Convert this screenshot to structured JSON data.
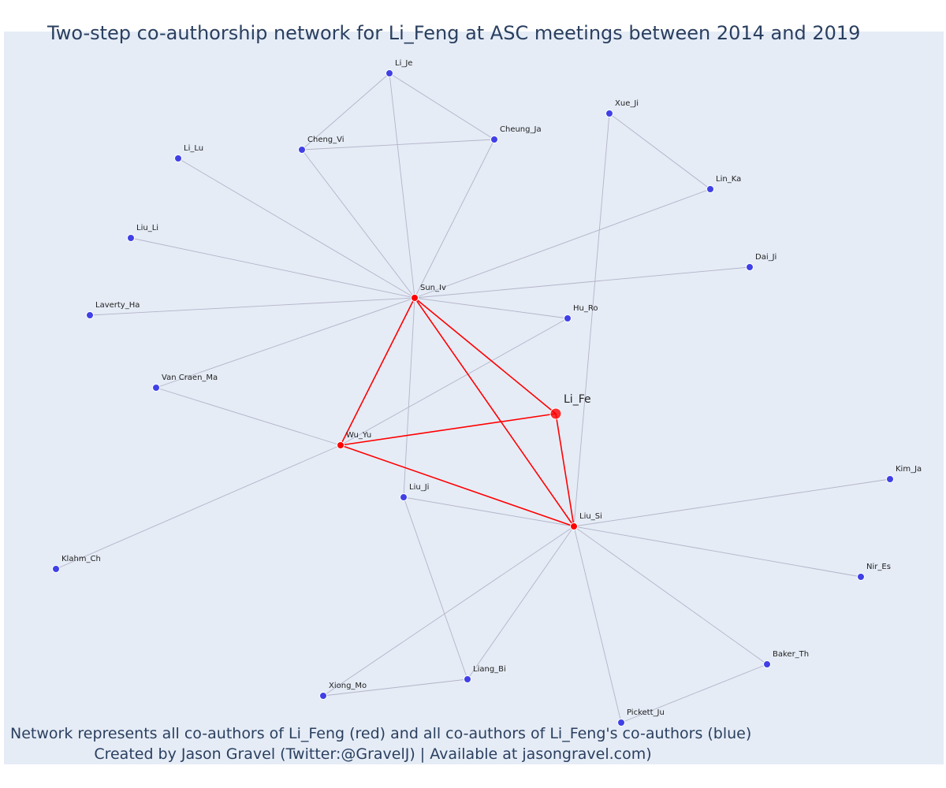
{
  "title": "Two-step co-authorship network for Li_Feng at ASC meetings between 2014 and 2019",
  "caption": {
    "line1": "Network represents all co-authors of Li_Feng (red) and all co-authors of Li_Feng's co-authors (blue)",
    "line2": "Created by Jason Gravel (Twitter:@GravelJ) | Available at jasongravel.com)"
  },
  "colors": {
    "background": "#e5ecf6",
    "first_degree": "#ff0000",
    "second_degree": "#4040e6",
    "edge_secondary": "#b4b4c8",
    "edge_primary": "#ff0000"
  },
  "nodes": [
    {
      "id": "Li_Fe",
      "group": "center"
    },
    {
      "id": "Sun_Iv",
      "group": "first"
    },
    {
      "id": "Wu_Yu",
      "group": "first"
    },
    {
      "id": "Liu_Si",
      "group": "first"
    },
    {
      "id": "Li_Je",
      "group": "second"
    },
    {
      "id": "Cheng_Vi",
      "group": "second"
    },
    {
      "id": "Cheung_Ja",
      "group": "second"
    },
    {
      "id": "Xue_Ji",
      "group": "second"
    },
    {
      "id": "Lin_Ka",
      "group": "second"
    },
    {
      "id": "Li_Lu",
      "group": "second"
    },
    {
      "id": "Liu_Li",
      "group": "second"
    },
    {
      "id": "Dai_Ji",
      "group": "second"
    },
    {
      "id": "Laverty_Ha",
      "group": "second"
    },
    {
      "id": "Hu_Ro",
      "group": "second"
    },
    {
      "id": "Van Craen_Ma",
      "group": "second"
    },
    {
      "id": "Liu_Ji",
      "group": "second"
    },
    {
      "id": "Kim_Ja",
      "group": "second"
    },
    {
      "id": "Klahm_Ch",
      "group": "second"
    },
    {
      "id": "Nir_Es",
      "group": "second"
    },
    {
      "id": "Baker_Th",
      "group": "second"
    },
    {
      "id": "Liang_Bi",
      "group": "second"
    },
    {
      "id": "Xiong_Mo",
      "group": "second"
    },
    {
      "id": "Pickett_Ju",
      "group": "second"
    }
  ],
  "edges": [
    {
      "source": "Li_Fe",
      "target": "Sun_Iv",
      "type": "primary"
    },
    {
      "source": "Li_Fe",
      "target": "Wu_Yu",
      "type": "primary"
    },
    {
      "source": "Li_Fe",
      "target": "Liu_Si",
      "type": "primary"
    },
    {
      "source": "Sun_Iv",
      "target": "Wu_Yu",
      "type": "primary"
    },
    {
      "source": "Sun_Iv",
      "target": "Liu_Si",
      "type": "primary"
    },
    {
      "source": "Wu_Yu",
      "target": "Liu_Si",
      "type": "primary"
    },
    {
      "source": "Sun_Iv",
      "target": "Li_Je",
      "type": "secondary"
    },
    {
      "source": "Sun_Iv",
      "target": "Cheng_Vi",
      "type": "secondary"
    },
    {
      "source": "Sun_Iv",
      "target": "Cheung_Ja",
      "type": "secondary"
    },
    {
      "source": "Sun_Iv",
      "target": "Li_Lu",
      "type": "secondary"
    },
    {
      "source": "Sun_Iv",
      "target": "Liu_Li",
      "type": "secondary"
    },
    {
      "source": "Sun_Iv",
      "target": "Laverty_Ha",
      "type": "secondary"
    },
    {
      "source": "Sun_Iv",
      "target": "Lin_Ka",
      "type": "secondary"
    },
    {
      "source": "Sun_Iv",
      "target": "Dai_Ji",
      "type": "secondary"
    },
    {
      "source": "Sun_Iv",
      "target": "Hu_Ro",
      "type": "secondary"
    },
    {
      "source": "Sun_Iv",
      "target": "Van Craen_Ma",
      "type": "secondary"
    },
    {
      "source": "Sun_Iv",
      "target": "Liu_Ji",
      "type": "secondary"
    },
    {
      "source": "Li_Je",
      "target": "Cheng_Vi",
      "type": "secondary"
    },
    {
      "source": "Li_Je",
      "target": "Cheung_Ja",
      "type": "secondary"
    },
    {
      "source": "Cheng_Vi",
      "target": "Cheung_Ja",
      "type": "secondary"
    },
    {
      "source": "Xue_Ji",
      "target": "Lin_Ka",
      "type": "secondary"
    },
    {
      "source": "Xue_Ji",
      "target": "Liu_Si",
      "type": "secondary"
    },
    {
      "source": "Wu_Yu",
      "target": "Van Craen_Ma",
      "type": "secondary"
    },
    {
      "source": "Wu_Yu",
      "target": "Hu_Ro",
      "type": "secondary"
    },
    {
      "source": "Wu_Yu",
      "target": "Klahm_Ch",
      "type": "secondary"
    },
    {
      "source": "Liu_Si",
      "target": "Liu_Ji",
      "type": "secondary"
    },
    {
      "source": "Liu_Si",
      "target": "Kim_Ja",
      "type": "secondary"
    },
    {
      "source": "Liu_Si",
      "target": "Nir_Es",
      "type": "secondary"
    },
    {
      "source": "Liu_Si",
      "target": "Baker_Th",
      "type": "secondary"
    },
    {
      "source": "Liu_Si",
      "target": "Pickett_Ju",
      "type": "secondary"
    },
    {
      "source": "Liu_Si",
      "target": "Liang_Bi",
      "type": "secondary"
    },
    {
      "source": "Liu_Si",
      "target": "Xiong_Mo",
      "type": "secondary"
    },
    {
      "source": "Liu_Ji",
      "target": "Liang_Bi",
      "type": "secondary"
    },
    {
      "source": "Xiong_Mo",
      "target": "Liang_Bi",
      "type": "secondary"
    },
    {
      "source": "Baker_Th",
      "target": "Pickett_Ju",
      "type": "secondary"
    }
  ]
}
